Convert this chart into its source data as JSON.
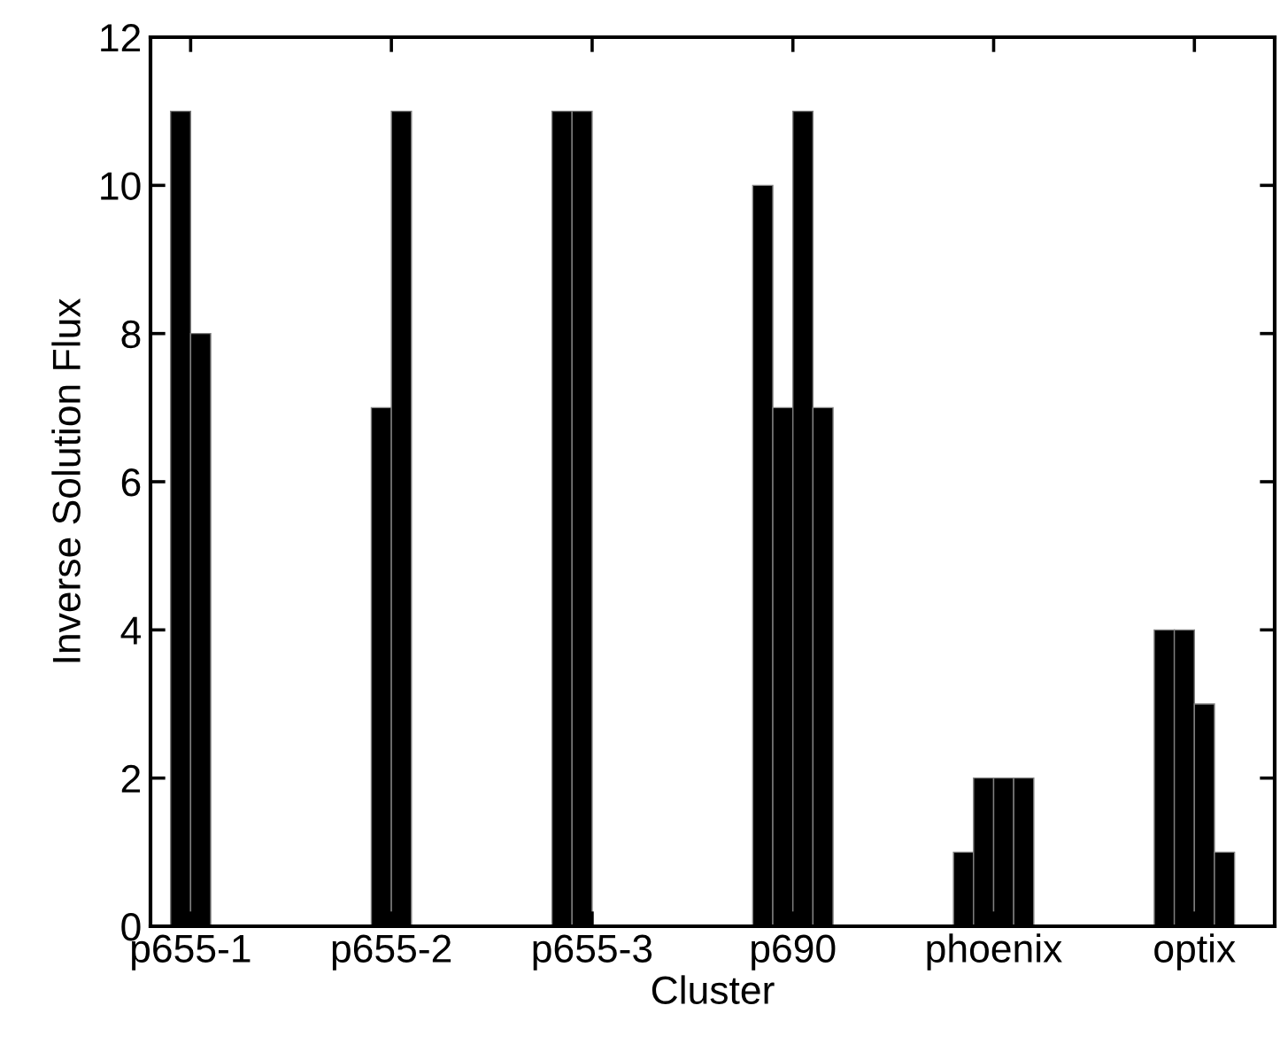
{
  "chart_data": {
    "type": "bar",
    "xlabel": "Cluster",
    "ylabel": "Inverse Solution Flux",
    "categories": [
      "p655-1",
      "p655-2",
      "p655-3",
      "p690",
      "phoenix",
      "optix"
    ],
    "series": [
      {
        "color": "#000000",
        "values": [
          null,
          null,
          11,
          10,
          1,
          4
        ]
      },
      {
        "color": "#000000",
        "values": [
          11,
          7,
          11,
          7,
          2,
          4
        ]
      },
      {
        "color": "#000000",
        "values": [
          8,
          11,
          null,
          11,
          2,
          3
        ]
      },
      {
        "color": "#000000",
        "values": [
          null,
          null,
          null,
          7,
          2,
          1
        ]
      }
    ],
    "ylim": [
      0,
      12
    ],
    "yticks": [
      0,
      2,
      4,
      6,
      8,
      10,
      12
    ],
    "grid": false,
    "legend": false
  }
}
